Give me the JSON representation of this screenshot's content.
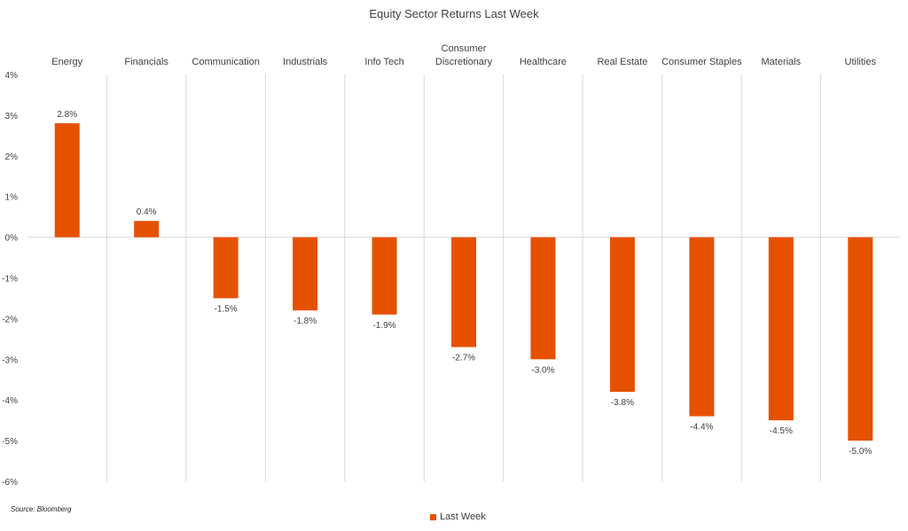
{
  "chart_data": {
    "type": "bar",
    "title": "Equity Sector Returns Last Week",
    "categories": [
      [
        "Energy"
      ],
      [
        "Financials"
      ],
      [
        "Communication"
      ],
      [
        "Industrials"
      ],
      [
        "Info Tech"
      ],
      [
        "Consumer",
        "Discretionary"
      ],
      [
        "Healthcare"
      ],
      [
        "Real Estate"
      ],
      [
        "Consumer Staples"
      ],
      [
        "Materials"
      ],
      [
        "Utilities"
      ]
    ],
    "series": [
      {
        "name": "Last Week",
        "values": [
          2.8,
          0.4,
          -1.5,
          -1.8,
          -1.9,
          -2.7,
          -3.0,
          -3.8,
          -4.4,
          -4.5,
          -5.0
        ]
      }
    ],
    "data_labels": [
      "2.8%",
      "0.4%",
      "-1.5%",
      "-1.8%",
      "-1.9%",
      "-2.7%",
      "-3.0%",
      "-3.8%",
      "-4.4%",
      "-4.5%",
      "-5.0%"
    ],
    "ylim": [
      -6,
      4
    ],
    "yticks": [
      4,
      3,
      2,
      1,
      0,
      -1,
      -2,
      -3,
      -4,
      -5,
      -6
    ],
    "ytick_labels": [
      "4%",
      "3%",
      "2%",
      "1%",
      "0%",
      "-1%",
      "-2%",
      "-3%",
      "-4%",
      "-5%",
      "-6%"
    ],
    "category_axis_position": "top",
    "grid": "vertical category separators",
    "legend_position": "bottom",
    "colors": {
      "bar": "#E65100",
      "separator": "#D9D9D9",
      "zero_line": "#D9D9D9"
    }
  },
  "source_note": "Source: Bloomberg"
}
